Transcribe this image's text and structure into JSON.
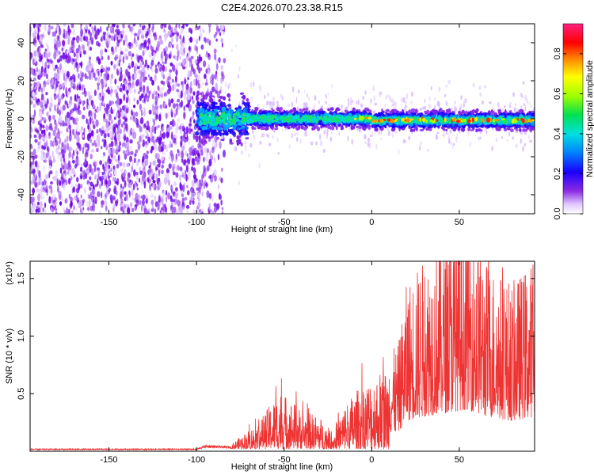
{
  "title": "C2E4.2026.070.23.38.R15",
  "chart_data": [
    {
      "type": "heatmap",
      "name": "spectrogram",
      "xlabel": "Height of straight line (km)",
      "ylabel": "Frequency (Hz)",
      "xlim": [
        -195,
        93
      ],
      "ylim": [
        -50,
        50
      ],
      "x_ticks": [
        -150,
        -100,
        -50,
        0,
        50
      ],
      "y_ticks": [
        -40,
        -20,
        0,
        20,
        40
      ],
      "colorbar": {
        "label": "Normalized spectral amplitude",
        "range": [
          0,
          0.95
        ],
        "ticks": [
          0.0,
          0.2,
          0.4,
          0.6,
          0.8
        ]
      },
      "regions": [
        {
          "x_range": [
            -195,
            -84
          ],
          "description": "broadband noise scatter"
        },
        {
          "x_range": [
            -100,
            93
          ],
          "center_frequency": 0,
          "bandwidth": 6,
          "description": "narrow signal band near 0 Hz"
        }
      ]
    },
    {
      "type": "line",
      "name": "snr",
      "xlabel": "Height of straight line (km)",
      "ylabel": "SNR (10 * v/v)",
      "y_multiplier": "(x10⁴)",
      "xlim": [
        -195,
        93
      ],
      "ylim": [
        0,
        1.65
      ],
      "x_ticks": [
        -150,
        -100,
        -50,
        0,
        50
      ],
      "y_ticks": [
        0.5,
        1.0,
        1.5
      ],
      "color": "#ee3333",
      "envelope": [
        {
          "x": -195,
          "y": 0.02
        },
        {
          "x": -100,
          "y": 0.02
        },
        {
          "x": -95,
          "y": 0.05
        },
        {
          "x": -80,
          "y": 0.04
        },
        {
          "x": -65,
          "y": 0.2
        },
        {
          "x": -52,
          "y": 0.45
        },
        {
          "x": -40,
          "y": 0.3
        },
        {
          "x": -30,
          "y": 0.25
        },
        {
          "x": -22,
          "y": 0.12
        },
        {
          "x": -15,
          "y": 0.35
        },
        {
          "x": -5,
          "y": 0.5
        },
        {
          "x": 5,
          "y": 0.6
        },
        {
          "x": 15,
          "y": 0.65
        },
        {
          "x": 20,
          "y": 1.05
        },
        {
          "x": 30,
          "y": 1.2
        },
        {
          "x": 40,
          "y": 1.3
        },
        {
          "x": 55,
          "y": 1.45
        },
        {
          "x": 65,
          "y": 1.2
        },
        {
          "x": 80,
          "y": 1.05
        },
        {
          "x": 93,
          "y": 1.2
        }
      ]
    }
  ]
}
